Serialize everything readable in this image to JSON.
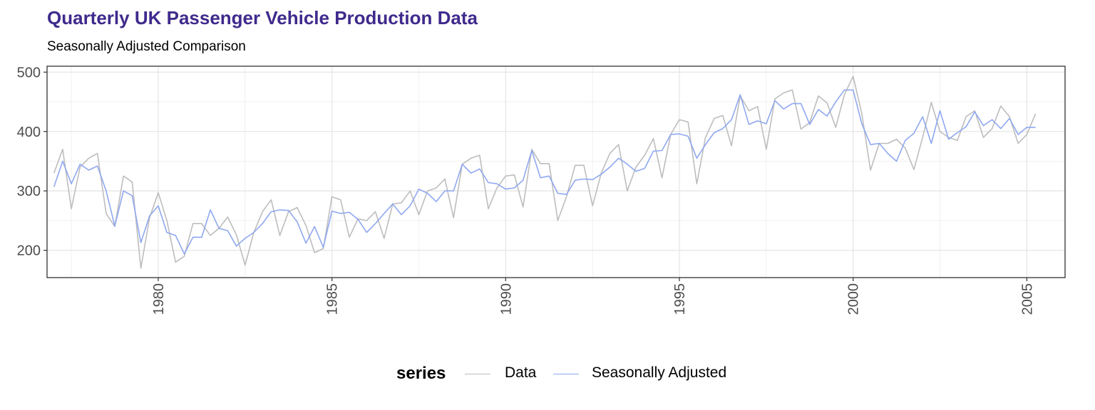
{
  "chart_data": {
    "type": "line",
    "title": "Quarterly UK Passenger Vehicle Production Data",
    "subtitle": "Seasonally Adjusted Comparison",
    "xlabel": "",
    "ylabel": "",
    "xlim": [
      1976.8,
      2006.1
    ],
    "ylim": [
      154,
      510
    ],
    "xticks": [
      1980,
      1985,
      1990,
      1995,
      2000,
      2005
    ],
    "yticks": [
      200,
      300,
      400,
      500
    ],
    "grid": true,
    "legend": {
      "title": "series",
      "position": "bottom"
    },
    "x_start": 1977.0,
    "x_step": 0.25,
    "series": [
      {
        "name": "Data",
        "color": "#bdbdbd",
        "values": [
          330,
          370,
          270,
          340,
          355,
          363,
          262,
          240,
          325,
          315,
          170,
          255,
          297,
          250,
          180,
          190,
          245,
          245,
          225,
          237,
          256,
          226,
          175,
          230,
          265,
          285,
          225,
          265,
          272,
          242,
          196,
          203,
          290,
          285,
          222,
          253,
          250,
          265,
          220,
          278,
          280,
          300,
          260,
          300,
          305,
          320,
          255,
          345,
          355,
          360,
          270,
          305,
          325,
          327,
          273,
          370,
          346,
          346,
          250,
          290,
          343,
          343,
          275,
          330,
          363,
          378,
          300,
          340,
          360,
          388,
          322,
          395,
          420,
          416,
          312,
          390,
          422,
          427,
          376,
          460,
          435,
          442,
          370,
          455,
          465,
          470,
          404,
          415,
          460,
          448,
          407,
          462,
          493,
          430,
          335,
          380,
          380,
          387,
          372,
          336,
          390,
          449,
          400,
          390,
          385,
          425,
          435,
          390,
          405,
          443,
          425,
          380,
          395,
          430
        ]
      },
      {
        "name": "Seasonally Adjusted",
        "color": "#8fa8f0",
        "values": [
          307,
          350,
          312,
          345,
          335,
          342,
          300,
          241,
          300,
          292,
          213,
          258,
          275,
          230,
          225,
          194,
          222,
          222,
          268,
          237,
          233,
          207,
          220,
          230,
          245,
          265,
          268,
          267,
          248,
          212,
          240,
          205,
          266,
          262,
          264,
          252,
          230,
          245,
          262,
          278,
          260,
          275,
          303,
          296,
          282,
          300,
          300,
          345,
          330,
          337,
          314,
          312,
          303,
          305,
          318,
          368,
          322,
          325,
          296,
          294,
          318,
          320,
          319,
          328,
          340,
          355,
          345,
          333,
          338,
          367,
          368,
          395,
          396,
          392,
          355,
          378,
          398,
          405,
          420,
          462,
          412,
          418,
          413,
          452,
          438,
          447,
          447,
          412,
          437,
          426,
          450,
          470,
          470,
          413,
          378,
          380,
          363,
          350,
          385,
          397,
          425,
          380,
          435,
          387,
          398,
          408,
          433,
          410,
          420,
          405,
          422,
          395,
          407,
          407
        ]
      }
    ]
  }
}
